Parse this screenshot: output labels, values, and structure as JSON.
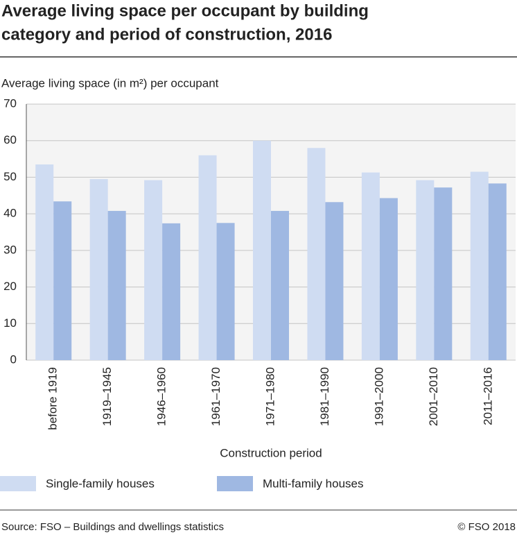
{
  "chart_data": {
    "type": "bar",
    "title": [
      "Average living space per occupant by building",
      "category and period of construction, 2016"
    ],
    "y_label": "Average living space (in m²) per occupant",
    "x_label": "Construction period",
    "categories": [
      "before 1919",
      "1919–1945",
      "1946–1960",
      "1961–1970",
      "1971–1980",
      "1981–1990",
      "1991–2000",
      "2001–2010",
      "2011–2016"
    ],
    "series": [
      {
        "name": "Single-family houses",
        "color": "#cfdcf2",
        "values": [
          53.5,
          49.5,
          49.2,
          56,
          60,
          58,
          51.3,
          49.2,
          51.5
        ]
      },
      {
        "name": "Multi-family houses",
        "color": "#9fb8e2",
        "values": [
          43.4,
          40.8,
          37.4,
          37.5,
          40.8,
          43.2,
          44.3,
          47.2,
          48.3
        ]
      }
    ],
    "ylim": [
      0,
      70
    ],
    "yticks": [
      0,
      10,
      20,
      30,
      40,
      50,
      60,
      70
    ],
    "grid": true,
    "source": "Source: FSO – Buildings and dwellings statistics",
    "credit": "© FSO 2018"
  }
}
